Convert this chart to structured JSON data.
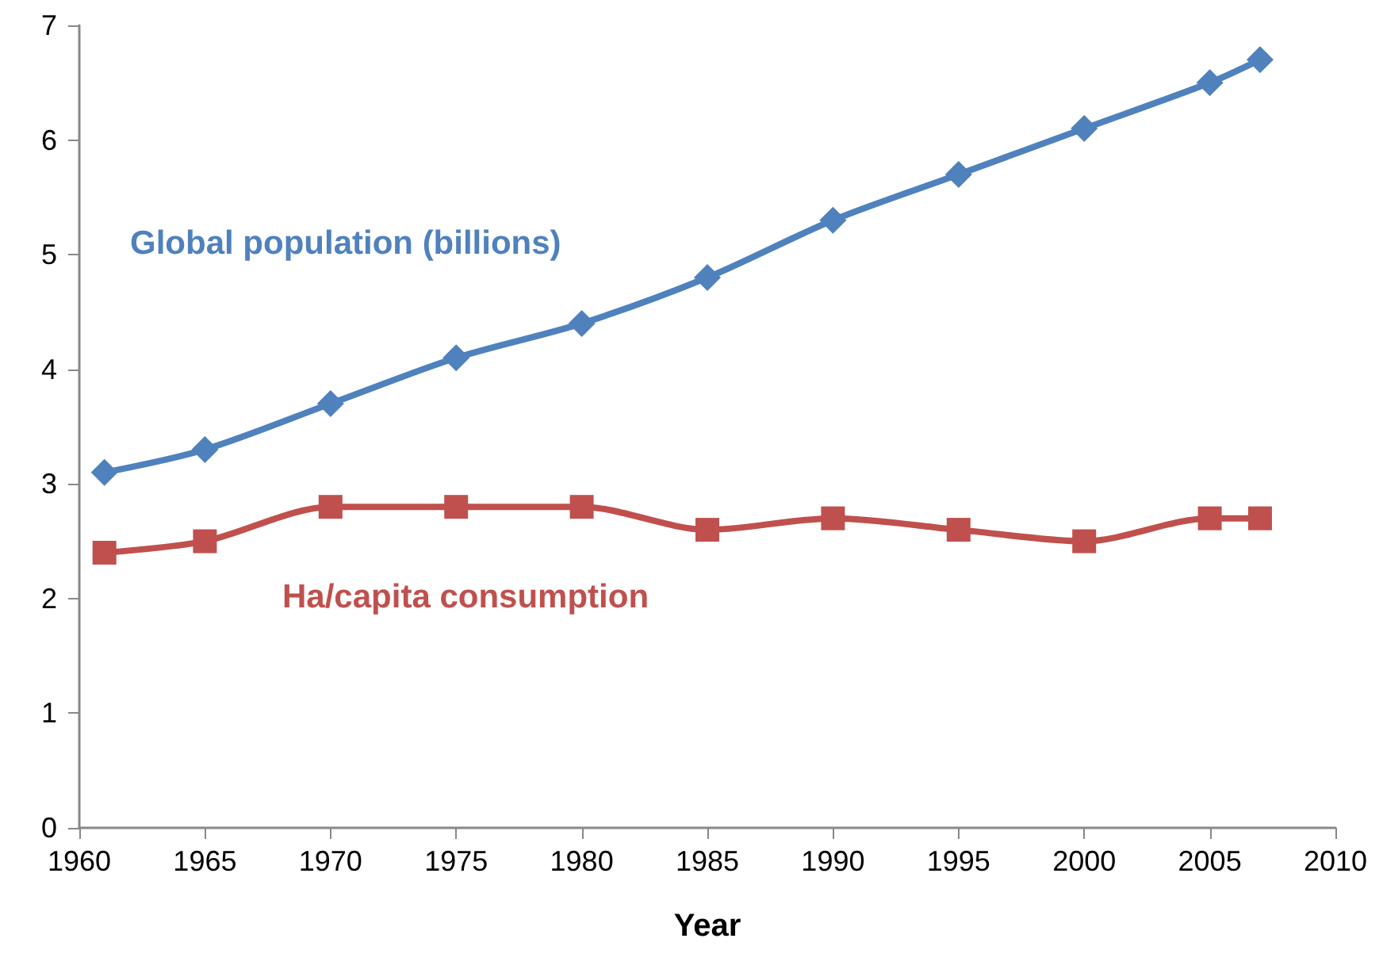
{
  "chart_data": {
    "type": "line",
    "xlabel": "Year",
    "x": [
      1961,
      1965,
      1970,
      1975,
      1980,
      1985,
      1990,
      1995,
      2000,
      2005,
      2007
    ],
    "series": [
      {
        "name": "Global population (billions)",
        "color": "#4f81bd",
        "marker": "diamond",
        "values": [
          3.1,
          3.3,
          3.7,
          4.1,
          4.4,
          4.8,
          5.3,
          5.7,
          6.1,
          6.5,
          6.7
        ]
      },
      {
        "name": "Ha/capita consumption",
        "color": "#c0504d",
        "marker": "square",
        "values": [
          2.4,
          2.5,
          2.8,
          2.8,
          2.8,
          2.6,
          2.7,
          2.6,
          2.5,
          2.7,
          2.7
        ]
      }
    ],
    "xlim": [
      1960,
      2010
    ],
    "xticks": [
      1960,
      1965,
      1970,
      1975,
      1980,
      1985,
      1990,
      1995,
      2000,
      2005,
      2010
    ],
    "ylim": [
      0,
      7
    ],
    "yticks": [
      0,
      1,
      2,
      3,
      4,
      5,
      6,
      7
    ],
    "grid": false,
    "legend": false
  }
}
